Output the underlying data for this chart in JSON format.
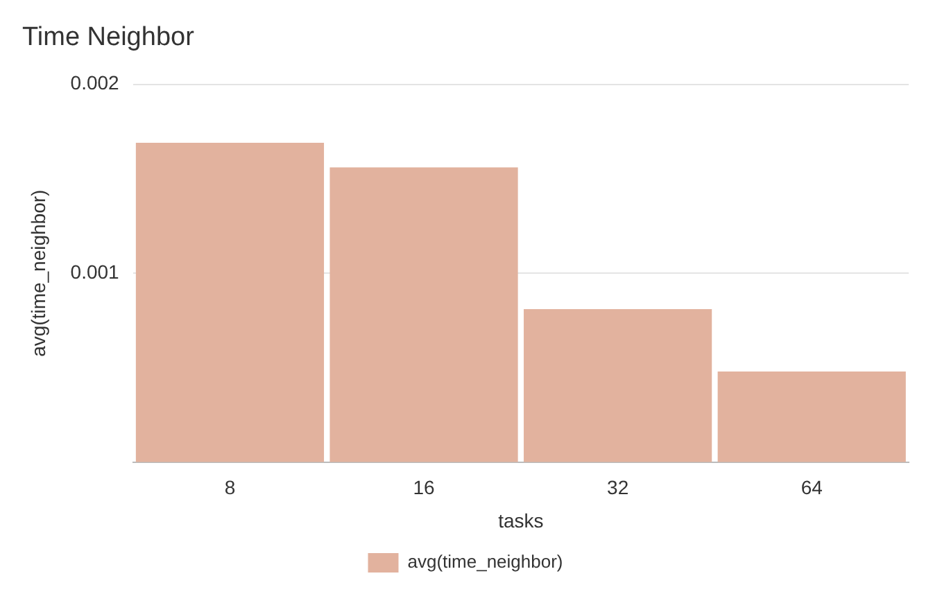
{
  "chart_data": {
    "type": "bar",
    "title": "Time Neighbor",
    "xlabel": "tasks",
    "ylabel": "avg(time_neighbor)",
    "categories": [
      "8",
      "16",
      "32",
      "64"
    ],
    "series": [
      {
        "name": "avg(time_neighbor)",
        "color": "#e2b29e",
        "values": [
          0.00169,
          0.00156,
          0.00081,
          0.00048
        ]
      }
    ],
    "ylim": [
      0,
      0.002
    ],
    "yticks": [
      0.001,
      0.002
    ],
    "grid": "y",
    "legend": "bottom"
  }
}
